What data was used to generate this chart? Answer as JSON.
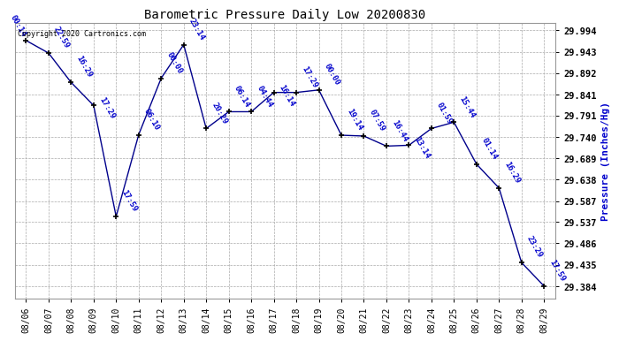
{
  "title": "Barometric Pressure Daily Low 20200830",
  "ylabel": "Pressure (Inches/Hg)",
  "copyright": "Copyright 2020 Cartronics.com",
  "yticks": [
    29.994,
    29.943,
    29.892,
    29.841,
    29.791,
    29.74,
    29.689,
    29.638,
    29.587,
    29.537,
    29.486,
    29.435,
    29.384
  ],
  "dates": [
    "08/06",
    "08/07",
    "08/08",
    "08/09",
    "08/10",
    "08/11",
    "08/12",
    "08/13",
    "08/14",
    "08/15",
    "08/16",
    "08/17",
    "08/18",
    "08/19",
    "08/20",
    "08/21",
    "08/22",
    "08/23",
    "08/24",
    "08/25",
    "08/26",
    "08/27",
    "08/28",
    "08/29"
  ],
  "y_values": [
    29.97,
    29.94,
    29.87,
    29.815,
    29.55,
    29.745,
    29.88,
    29.96,
    29.76,
    29.8,
    29.8,
    29.846,
    29.846,
    29.852,
    29.744,
    29.742,
    29.718,
    29.72,
    29.76,
    29.775,
    29.675,
    29.618,
    29.44,
    29.384
  ],
  "annotations": [
    "00:14",
    "22:59",
    "16:29",
    "17:29",
    "17:59",
    "06:10",
    "00:00",
    "23:14",
    "20:29",
    "06:14",
    "04:44",
    "16:14",
    "17:29",
    "00:00",
    "19:14",
    "07:59",
    "16:44",
    "13:14",
    "01:59",
    "15:44",
    "01:14",
    "16:29",
    "23:29",
    "17:59"
  ],
  "line_color": "#00008B",
  "marker_color": "black",
  "annotation_color": "#0000CC",
  "title_color": "black",
  "ylabel_color": "#0000CC",
  "background_color": "white",
  "grid_color": "#AAAAAA",
  "grid_style": "--",
  "ylim_min": 29.355,
  "ylim_max": 30.012,
  "figwidth": 6.9,
  "figheight": 3.75,
  "dpi": 100
}
